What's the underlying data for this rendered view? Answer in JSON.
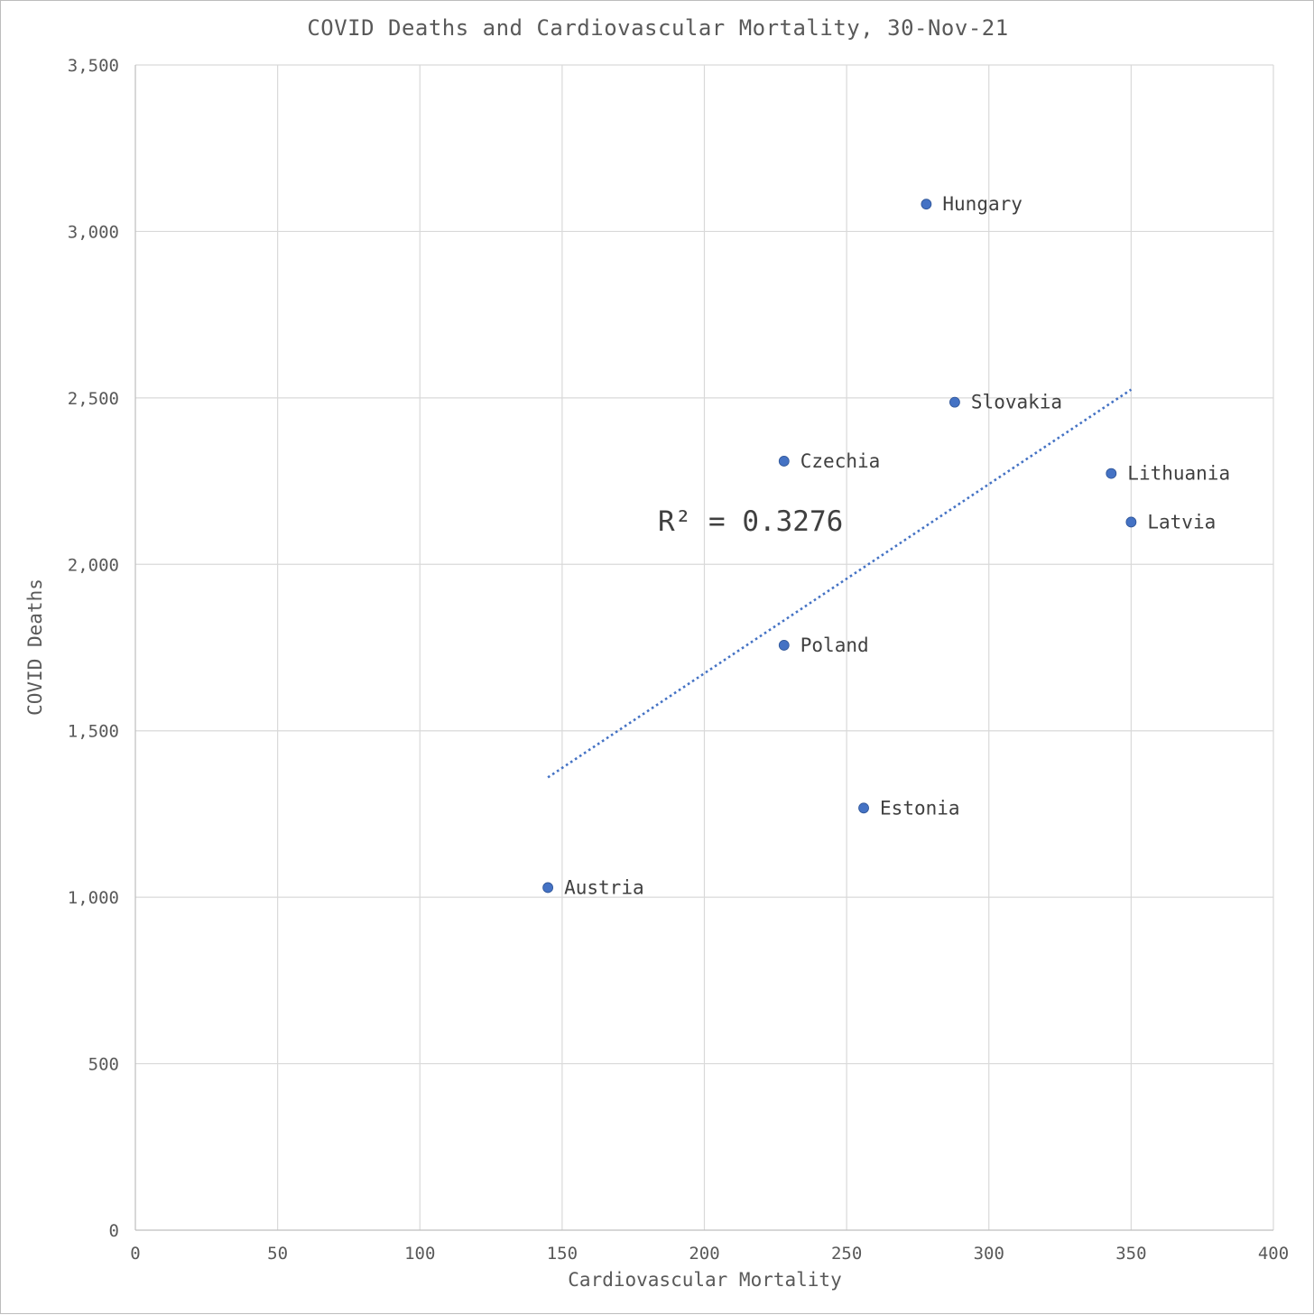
{
  "chart_data": {
    "type": "scatter",
    "title": "COVID Deaths and Cardiovascular Mortality, 30-Nov-21",
    "xlabel": "Cardiovascular Mortality",
    "ylabel": "COVID Deaths",
    "xlim": [
      0,
      400
    ],
    "ylim": [
      0,
      3500
    ],
    "x_ticks": [
      0,
      50,
      100,
      150,
      200,
      250,
      300,
      350,
      400
    ],
    "y_ticks": [
      0,
      500,
      1000,
      1500,
      2000,
      2500,
      3000,
      3500
    ],
    "x_tick_labels": [
      "0",
      "50",
      "100",
      "150",
      "200",
      "250",
      "300",
      "350",
      "400"
    ],
    "y_tick_labels": [
      "0",
      "500",
      "1,000",
      "1,500",
      "2,000",
      "2,500",
      "3,000",
      "3,500"
    ],
    "grid": true,
    "point_color": "#4472c4",
    "points": [
      {
        "label": "Austria",
        "x": 145,
        "y": 1029
      },
      {
        "label": "Estonia",
        "x": 256,
        "y": 1268
      },
      {
        "label": "Poland",
        "x": 228,
        "y": 1757
      },
      {
        "label": "Czechia",
        "x": 228,
        "y": 2310
      },
      {
        "label": "Slovakia",
        "x": 288,
        "y": 2487
      },
      {
        "label": "Hungary",
        "x": 278,
        "y": 3082
      },
      {
        "label": "Lithuania",
        "x": 343,
        "y": 2273
      },
      {
        "label": "Latvia",
        "x": 350,
        "y": 2127
      }
    ],
    "trendline": {
      "type": "linear",
      "style": "dotted",
      "color": "#4472c4",
      "x_start": 145,
      "x_end": 350,
      "y_start": 1360,
      "y_end": 2525,
      "r_squared_label": "R² = 0.3276",
      "r_squared_value": 0.3276
    }
  }
}
